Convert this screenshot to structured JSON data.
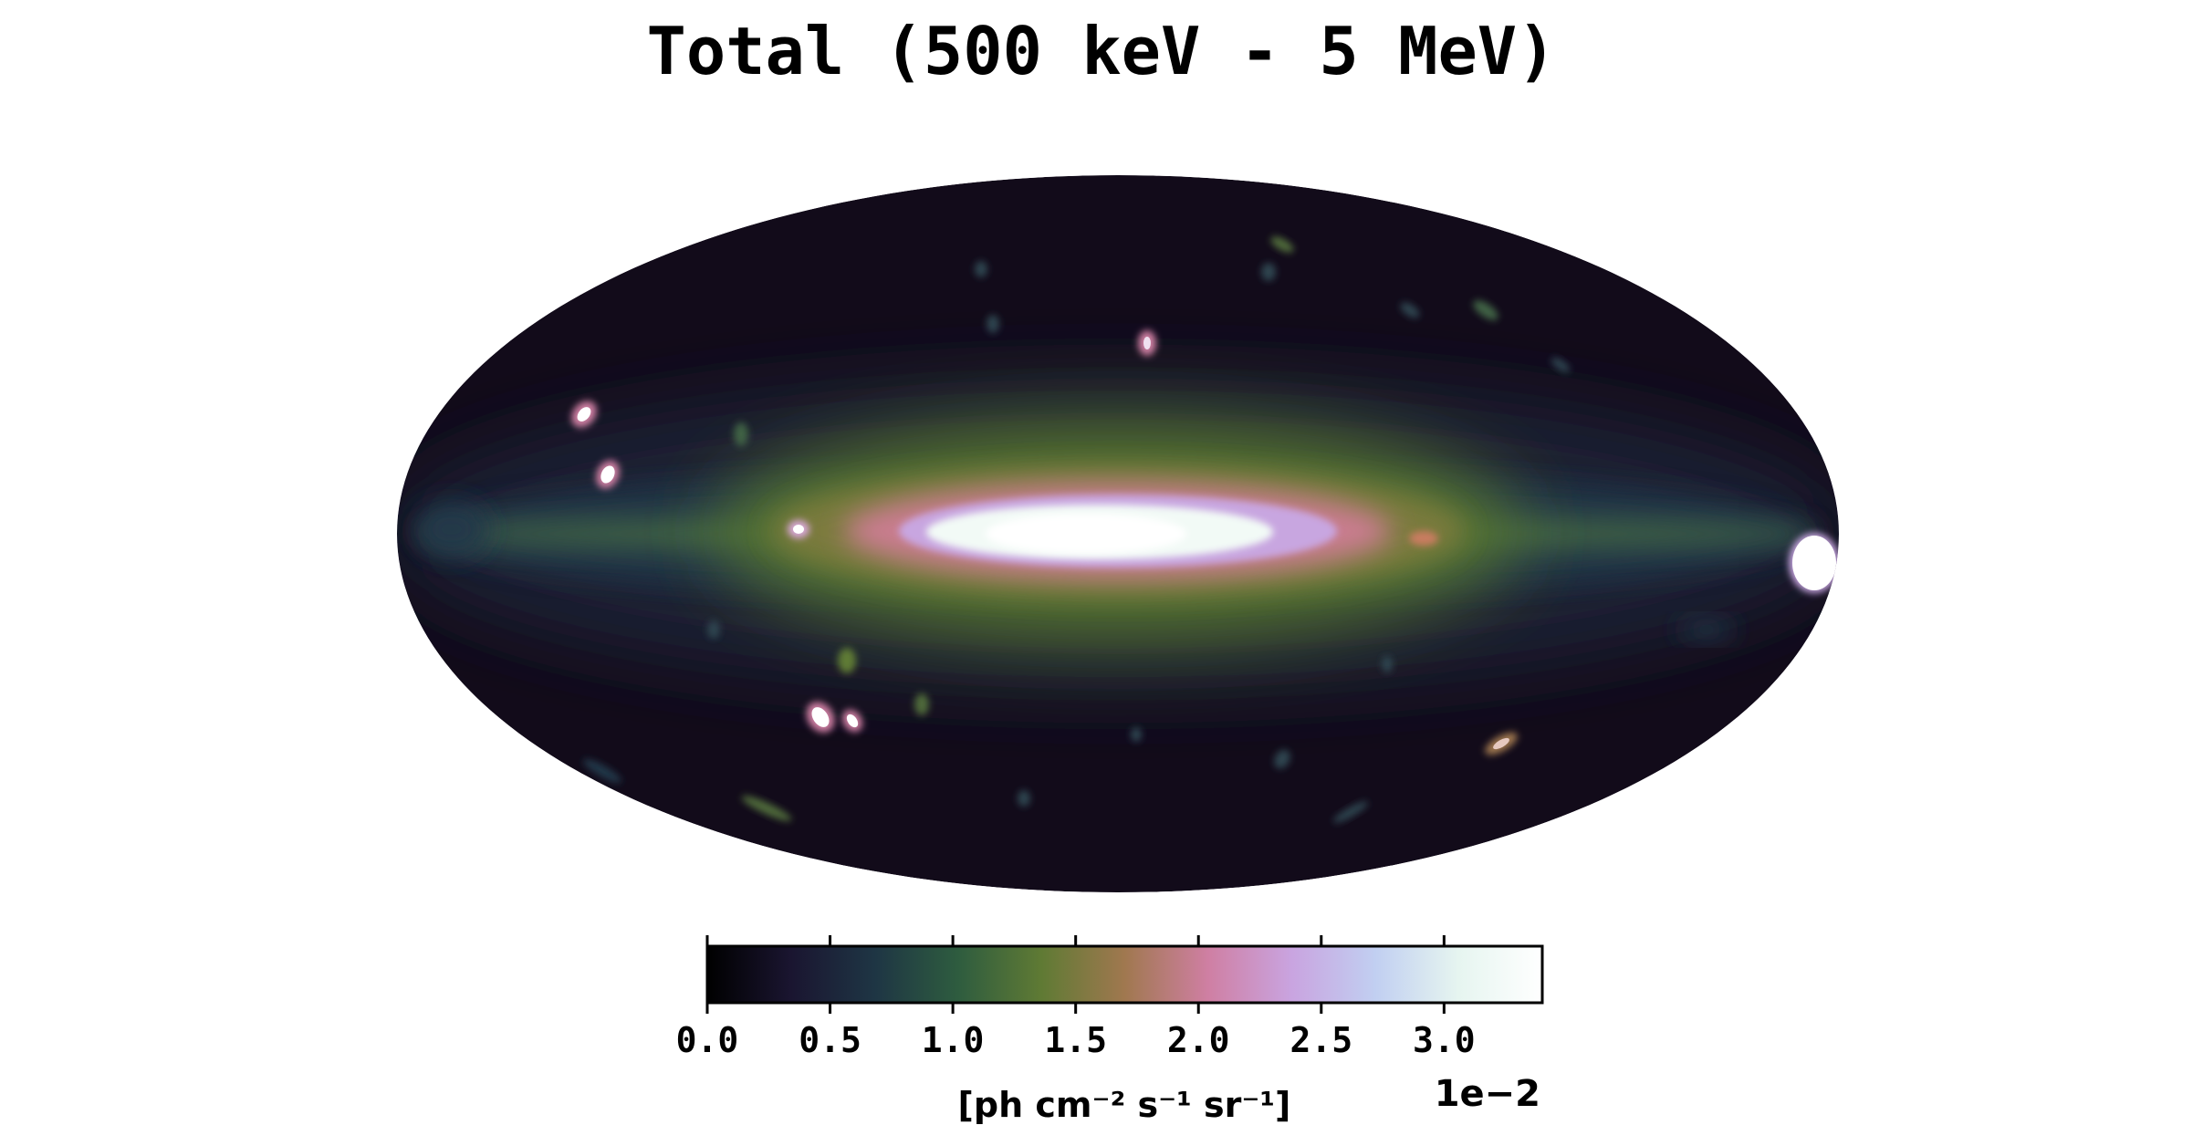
{
  "chart_data": {
    "type": "heatmap",
    "title": "Total (500 keV - 5 MeV)",
    "projection": "mollweide",
    "colorbar": {
      "label": "[ph cm⁻² s⁻¹ sr⁻¹]",
      "multiplier_label": "1e−2",
      "range": [
        0.0,
        3.4
      ],
      "ticks": [
        0.0,
        0.5,
        1.0,
        1.5,
        2.0,
        2.5,
        3.0
      ],
      "tick_labels": [
        "0.0",
        "0.5",
        "1.0",
        "1.5",
        "2.0",
        "2.5",
        "3.0"
      ],
      "colormap": "cubehelix",
      "colors": [
        "#000000",
        "#1a1530",
        "#1e3544",
        "#2e5c3f",
        "#5f7a34",
        "#a0784f",
        "#cf7fa3",
        "#c9a4e0",
        "#c1cff1",
        "#e6f5f0",
        "#ffffff"
      ]
    },
    "features": [
      {
        "name": "galactic-bulge",
        "lon": 0,
        "lat": 0,
        "level": 3.4
      },
      {
        "name": "galactic-plane",
        "lat": 0,
        "level": 1.0
      },
      {
        "name": "point-source",
        "lon": 80,
        "lat": 0,
        "level": 3.0
      },
      {
        "name": "point-source",
        "lon": 180,
        "lat": -3,
        "level": 3.4
      },
      {
        "name": "point-source",
        "lon": 110,
        "lat": 30,
        "level": 2.4
      },
      {
        "name": "point-source",
        "lon": 112,
        "lat": 18,
        "level": 2.8
      },
      {
        "name": "point-source",
        "lon": 83,
        "lat": -45,
        "level": 3.2
      },
      {
        "name": "point-source",
        "lon": 78,
        "lat": -45,
        "level": 2.8
      },
      {
        "name": "point-source",
        "lon": -5,
        "lat": 50,
        "level": 1.6
      },
      {
        "name": "point-source",
        "lon": -75,
        "lat": -45,
        "level": 1.7
      }
    ]
  }
}
